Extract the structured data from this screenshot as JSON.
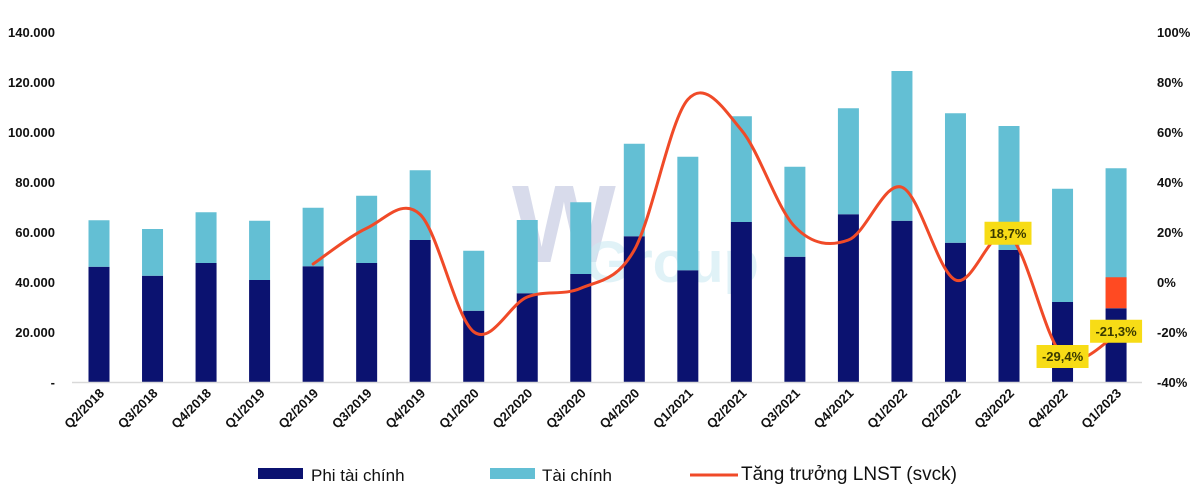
{
  "chart_data": {
    "type": "bar",
    "subtype": "stacked bar + line (dual axis)",
    "title": "",
    "xlabel": "",
    "ylabel": "",
    "y2label": "",
    "categories": [
      "Q2/2018",
      "Q3/2018",
      "Q4/2018",
      "Q1/2019",
      "Q2/2019",
      "Q3/2019",
      "Q4/2019",
      "Q1/2020",
      "Q2/2020",
      "Q3/2020",
      "Q4/2020",
      "Q1/2021",
      "Q2/2021",
      "Q3/2021",
      "Q4/2021",
      "Q1/2022",
      "Q2/2022",
      "Q3/2022",
      "Q4/2022",
      "Q1/2023"
    ],
    "series": [
      {
        "name": "Phi tài chính",
        "type": "bar",
        "stack": "total",
        "axis": "left",
        "color": "#0b1270",
        "values": [
          46100,
          42500,
          47600,
          40800,
          46300,
          47600,
          56800,
          28500,
          35500,
          43200,
          58300,
          44700,
          64000,
          50100,
          67100,
          64500,
          55700,
          52800,
          32000,
          29500
        ]
      },
      {
        "name": "Tài chính",
        "type": "bar",
        "stack": "total",
        "axis": "left",
        "color": "#63bfd4",
        "values": [
          18600,
          18700,
          20300,
          23700,
          23400,
          26900,
          27900,
          24000,
          29300,
          28700,
          37000,
          45400,
          42300,
          36000,
          42400,
          59900,
          51800,
          49600,
          45300,
          56000
        ],
        "highlight": {
          "category": "Q1/2023",
          "from": 29500,
          "to": 41900,
          "color": "#ff4a22"
        }
      },
      {
        "name": "Tăng trưởng LNST (svck)",
        "type": "line",
        "axis": "right",
        "color": "#f04a28",
        "values": [
          null,
          null,
          null,
          null,
          7.2,
          21.5,
          27,
          -19.9,
          -6,
          -2.5,
          12.8,
          73,
          60.8,
          22.1,
          16.8,
          37.9,
          0.8,
          18.7,
          -29.4,
          -21.3
        ],
        "unit": "%"
      }
    ],
    "y_axis_left": {
      "min": 0,
      "max": 140000,
      "step": 20000,
      "ticks": [
        "-",
        "20.000",
        "40.000",
        "60.000",
        "80.000",
        "100.000",
        "120.000",
        "140.000"
      ]
    },
    "y_axis_right": {
      "min": -40,
      "max": 100,
      "step": 20,
      "ticks": [
        "-40%",
        "-20%",
        "0%",
        "20%",
        "40%",
        "60%",
        "80%",
        "100%"
      ]
    },
    "annotations": [
      {
        "category": "Q3/2022",
        "text": "18,7%"
      },
      {
        "category": "Q4/2022",
        "text": "-29,4%"
      },
      {
        "category": "Q1/2023",
        "text": "-21,3%"
      }
    ],
    "grid": false,
    "legend_position": "bottom"
  },
  "legend": {
    "items": [
      {
        "label": "Phi tài chính",
        "swatch": "bar",
        "color": "#0b1270"
      },
      {
        "label": "Tài chính",
        "swatch": "bar",
        "color": "#63bfd4"
      },
      {
        "label": "Tăng trưởng LNST (svck)",
        "swatch": "line",
        "color": "#f04a28"
      }
    ]
  },
  "watermark": {
    "w": "W",
    "rest": "Group"
  },
  "colors": {
    "callout_bg": "#f7dc16",
    "axis_line": "#d9d9d9"
  }
}
